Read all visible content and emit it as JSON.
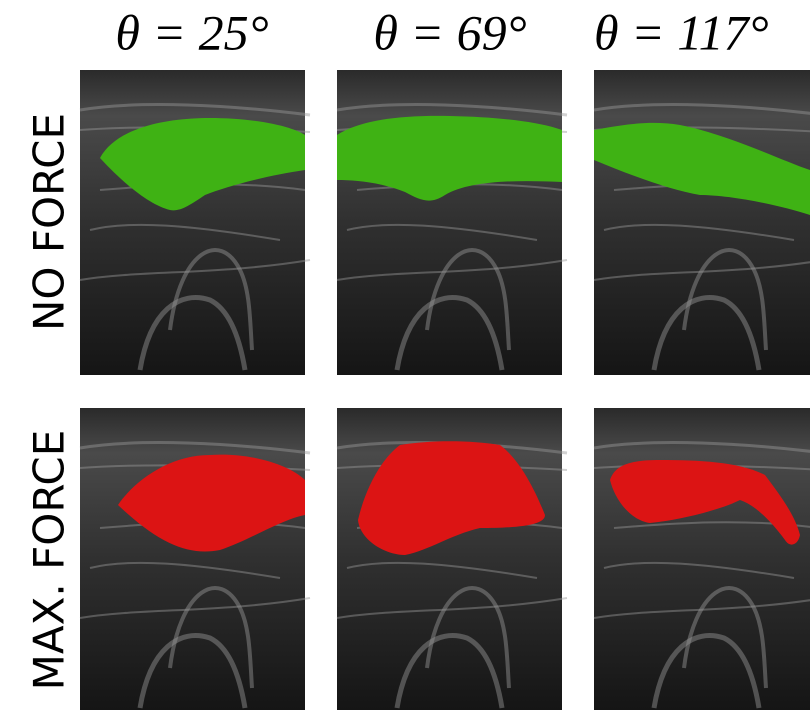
{
  "column_headers": [
    "θ = 25°",
    "θ = 69°",
    "θ = 117°"
  ],
  "row_labels": [
    "NO FORCE",
    "MAX. FORCE"
  ]
}
